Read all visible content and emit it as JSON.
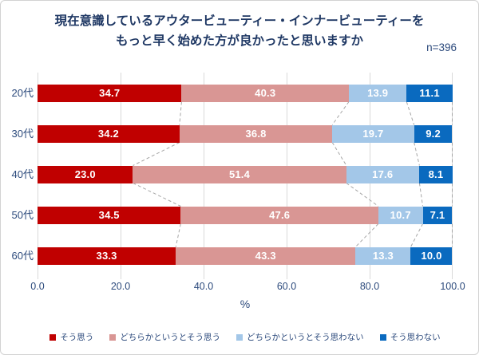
{
  "title": {
    "line1": "現在意識しているアウタービューティー・インナービューティーを",
    "line2": "もっと早く始めた方が良かったと思いますか"
  },
  "sample_size": "n=396",
  "chart_data": {
    "type": "bar",
    "variant": "horizontal-stacked-100pct",
    "title": "現在意識しているアウタービューティー・インナービューティーを もっと早く始めた方が良かったと思いますか",
    "sample_size": "n=396",
    "categories": [
      "20代",
      "30代",
      "40代",
      "50代",
      "60代"
    ],
    "series": [
      {
        "name": "そう思う",
        "color": "#C00000",
        "values": [
          34.7,
          34.2,
          23.0,
          34.5,
          33.3
        ]
      },
      {
        "name": "どちらかというとそう思う",
        "color": "#D99694",
        "values": [
          40.3,
          36.8,
          51.4,
          47.6,
          43.3
        ]
      },
      {
        "name": "どちらかというとそう思わない",
        "color": "#A3C7E8",
        "values": [
          13.9,
          19.7,
          17.6,
          10.7,
          13.3
        ]
      },
      {
        "name": "そう思わない",
        "color": "#0A6ABF",
        "values": [
          11.1,
          9.2,
          8.1,
          7.1,
          10.0
        ]
      }
    ],
    "xlabel": "%",
    "xlim": [
      0,
      100
    ],
    "xticks": [
      "0.0",
      "20.0",
      "40.0",
      "60.0",
      "80.0",
      "100.0"
    ],
    "grid": true,
    "legend_position": "bottom",
    "value_labels": "inside-center-white-bold-one-decimal",
    "connectors": "dashed gray lines linking stacked-segment boundaries between adjacent bars"
  },
  "style": {
    "grid_color": "#D9D9D9",
    "connector_color": "#A6A6A6",
    "title_color": "#1F3864",
    "axis_text_color": "#2C4A7C",
    "frame_border_color": "#D2D2D2"
  }
}
